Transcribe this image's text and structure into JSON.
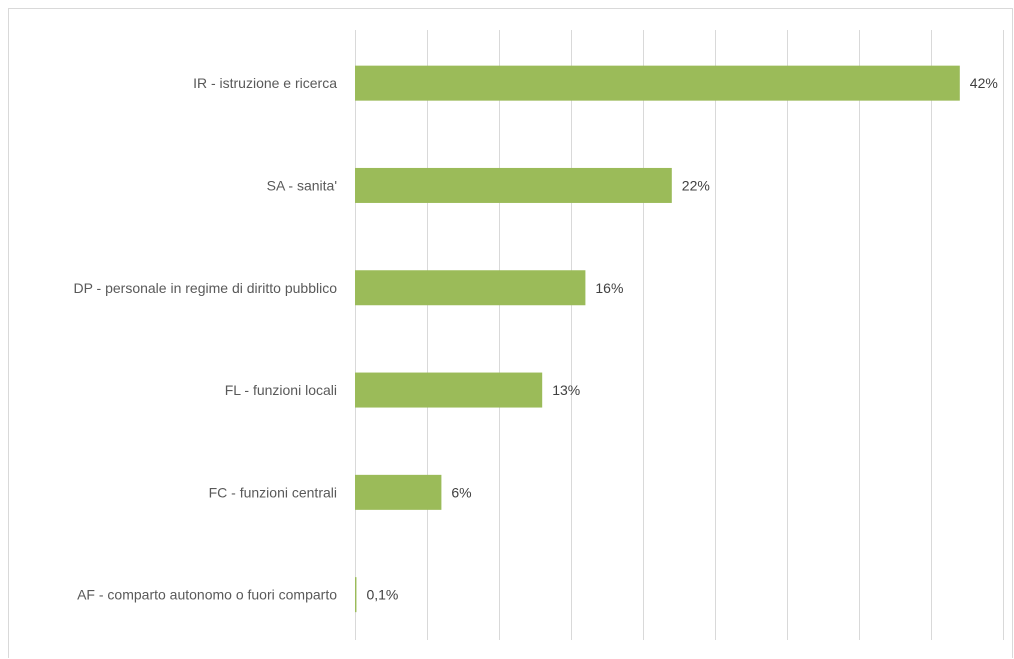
{
  "chart_data": {
    "type": "bar",
    "orientation": "horizontal",
    "categories": [
      "IR - istruzione e ricerca",
      "SA - sanita'",
      "DP - personale in regime di diritto pubblico",
      "FL - funzioni locali",
      "FC - funzioni centrali",
      "AF - comparto autonomo o fuori comparto"
    ],
    "values": [
      42,
      22,
      16,
      13,
      6,
      0.1
    ],
    "data_labels": [
      "42%",
      "22%",
      "16%",
      "13%",
      "6%",
      "0,1%"
    ],
    "xlim": [
      0,
      45
    ],
    "grid": true,
    "bar_color": "#9bbb59",
    "title": "",
    "xlabel": "",
    "ylabel": ""
  }
}
